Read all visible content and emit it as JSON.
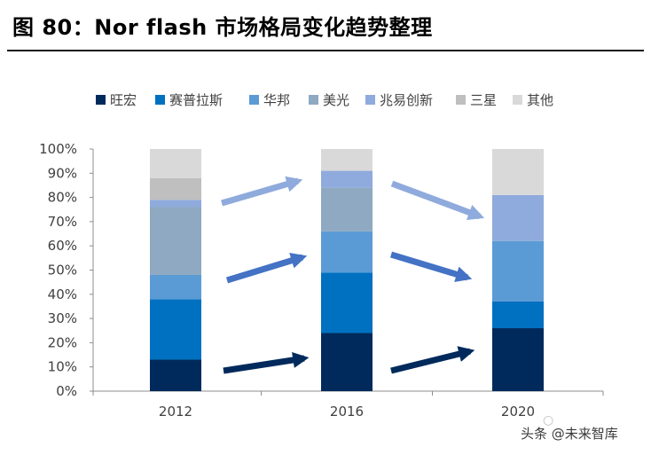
{
  "title": "图 80：Nor flash 市场格局变化趋势整理",
  "watermark": {
    "text": "头条 @未来智库",
    "icon": "wechat-icon"
  },
  "chart_data": {
    "type": "bar",
    "stacked": true,
    "title": "图 80：Nor flash 市场格局变化趋势整理",
    "xlabel": "",
    "ylabel": "",
    "ylim": [
      0,
      100
    ],
    "y_ticks": [
      "0%",
      "10%",
      "20%",
      "30%",
      "40%",
      "50%",
      "60%",
      "70%",
      "80%",
      "90%",
      "100%"
    ],
    "categories": [
      "2012",
      "2016",
      "2020"
    ],
    "legend_position": "top",
    "series": [
      {
        "name": "旺宏",
        "color": "#002A5C",
        "values": [
          13,
          24,
          26
        ]
      },
      {
        "name": "赛普拉斯",
        "color": "#0070C0",
        "values": [
          25,
          25,
          11
        ]
      },
      {
        "name": "华邦",
        "color": "#5B9BD5",
        "values": [
          10,
          17,
          25
        ]
      },
      {
        "name": "美光",
        "color": "#8EA9C1",
        "values": [
          28,
          18,
          0
        ]
      },
      {
        "name": "兆易创新",
        "color": "#8FAADC",
        "values": [
          3,
          7,
          19
        ]
      },
      {
        "name": "三星",
        "color": "#BFBFBF",
        "values": [
          9,
          0,
          0
        ]
      },
      {
        "name": "其他",
        "color": "#D9D9D9",
        "values": [
          12,
          9,
          19
        ]
      }
    ],
    "annotations": [
      {
        "type": "trend-arrow",
        "from": "2012",
        "to": "2016",
        "series": "旺宏",
        "color": "#002A5C"
      },
      {
        "type": "trend-arrow",
        "from": "2016",
        "to": "2020",
        "series": "旺宏",
        "color": "#002A5C"
      },
      {
        "type": "trend-arrow",
        "from": "2012",
        "to": "2016",
        "series": "华邦",
        "color": "#4472C4"
      },
      {
        "type": "trend-arrow",
        "from": "2016",
        "to": "2020",
        "series": "华邦",
        "color": "#4472C4"
      },
      {
        "type": "trend-arrow",
        "from": "2012",
        "to": "2016",
        "series": "兆易创新",
        "color": "#8FAADC"
      },
      {
        "type": "trend-arrow",
        "from": "2016",
        "to": "2020",
        "series": "兆易创新",
        "color": "#8FAADC"
      }
    ]
  }
}
